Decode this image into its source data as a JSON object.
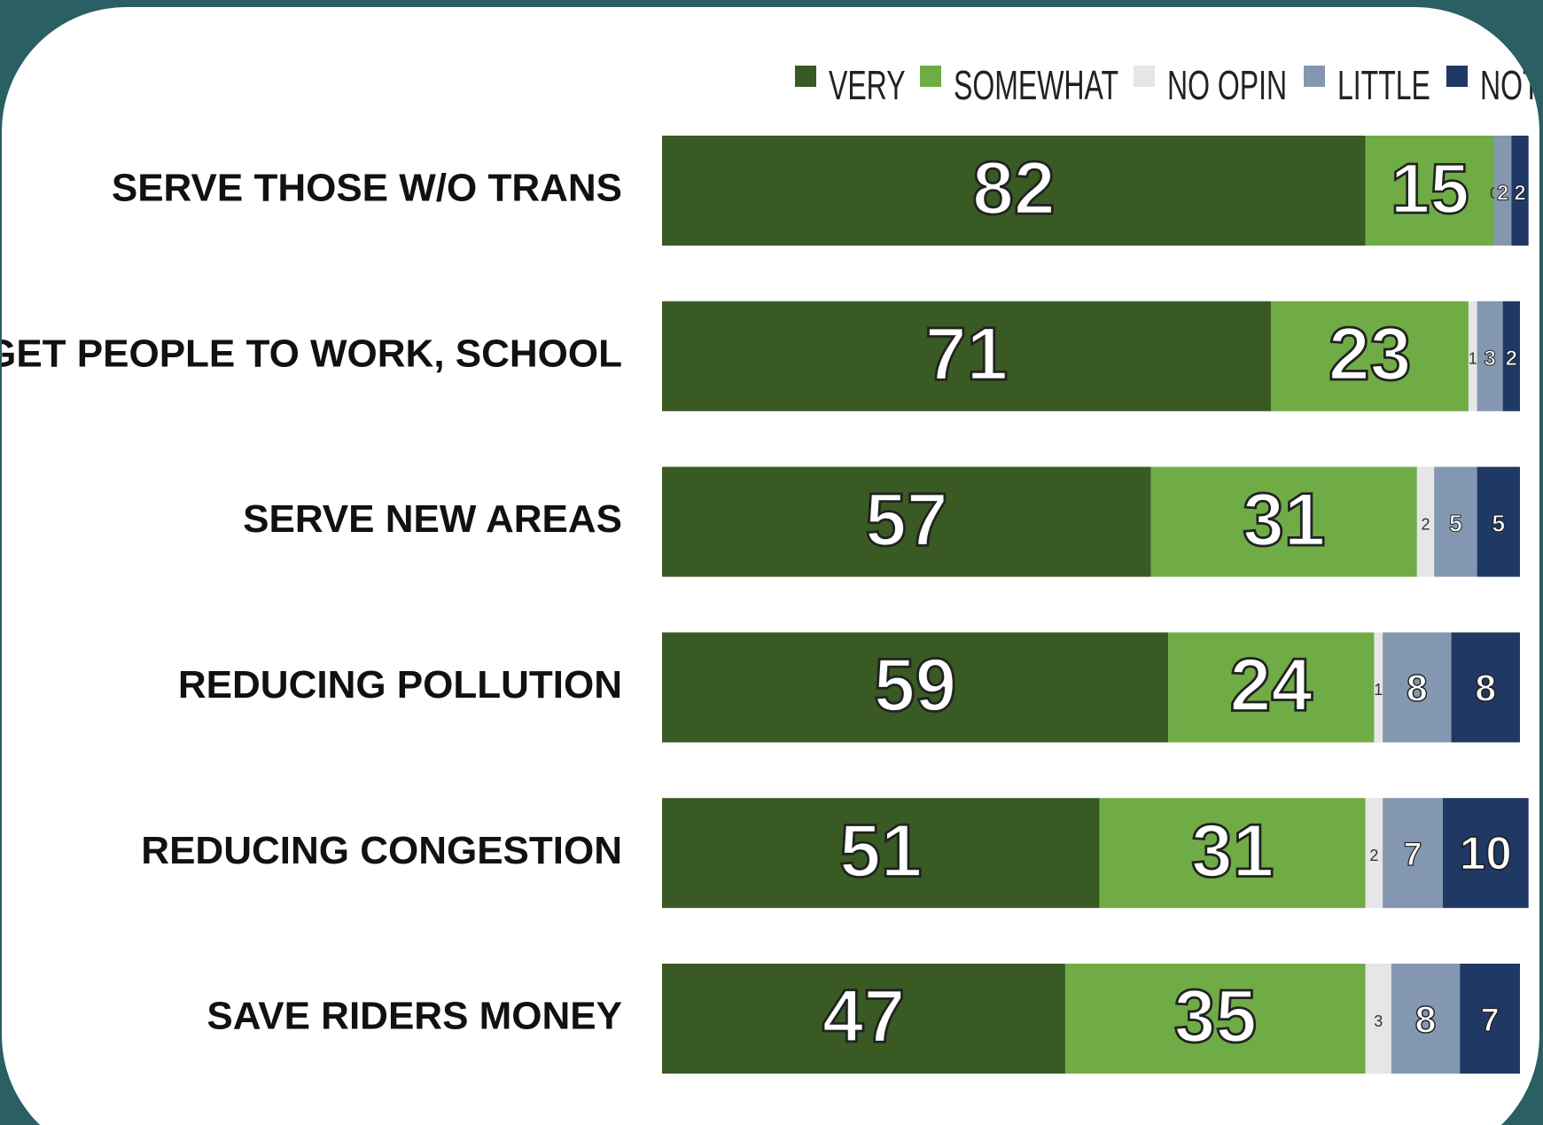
{
  "chart_data": {
    "type": "stacked-bar-horizontal",
    "categories": [
      "SERVE THOSE W/O TRANS",
      "GET PEOPLE TO WORK, SCHOOL",
      "SERVE NEW AREAS",
      "REDUCING POLLUTION",
      "REDUCING CONGESTION",
      "SAVE RIDERS MONEY"
    ],
    "series": [
      {
        "name": "VERY",
        "color": "#3a5a24",
        "values": [
          82,
          71,
          57,
          59,
          51,
          47
        ]
      },
      {
        "name": "SOMEWHAT",
        "color": "#6fac46",
        "values": [
          15,
          23,
          31,
          24,
          31,
          35
        ]
      },
      {
        "name": "NO OPIN",
        "color": "#e6e6e6",
        "values": [
          0,
          1,
          2,
          1,
          2,
          3
        ]
      },
      {
        "name": "LITTLE",
        "color": "#8497b0",
        "values": [
          2,
          3,
          5,
          8,
          7,
          8
        ]
      },
      {
        "name": "NOT",
        "color": "#203864",
        "values": [
          2,
          2,
          5,
          8,
          10,
          7
        ]
      }
    ],
    "xlim": [
      0,
      100
    ],
    "legend": "top-right"
  }
}
